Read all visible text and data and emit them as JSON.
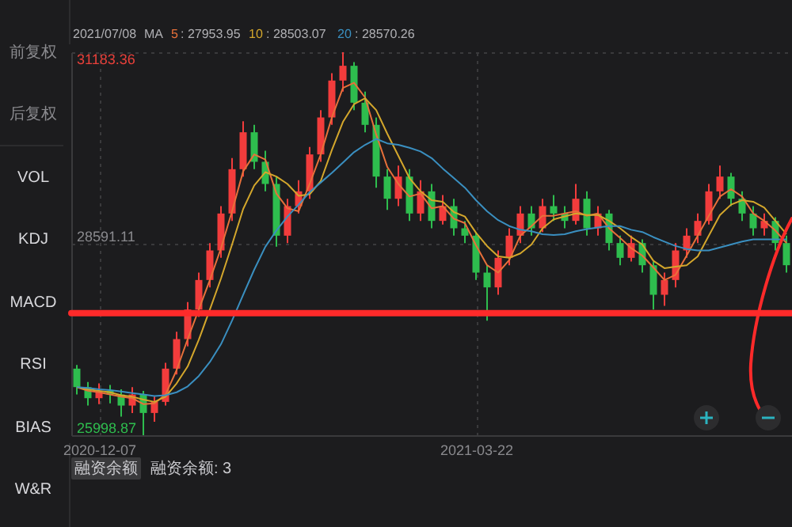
{
  "chart_data": {
    "type": "candlestick",
    "categories": [
      null,
      null,
      "2020-12-07",
      null,
      null,
      null,
      null,
      null,
      null,
      null,
      null,
      null,
      null,
      null,
      null,
      null,
      null,
      null,
      null,
      null,
      null,
      null,
      null,
      null,
      null,
      null,
      null,
      null,
      null,
      null,
      null,
      null,
      null,
      null,
      null,
      null,
      "2021-03-22",
      null,
      null,
      null,
      null,
      null,
      null,
      null,
      null,
      null,
      null,
      null,
      null,
      null,
      null,
      null,
      null,
      null,
      null,
      null,
      null,
      null,
      null,
      null,
      null,
      null,
      null,
      null,
      null
    ],
    "ohlc": [
      [
        26900,
        26950,
        26550,
        26650
      ],
      [
        26650,
        26720,
        26400,
        26500
      ],
      [
        26500,
        26700,
        26420,
        26600
      ],
      [
        26600,
        26680,
        26430,
        26550
      ],
      [
        26550,
        26620,
        26250,
        26400
      ],
      [
        26400,
        26650,
        26300,
        26550
      ],
      [
        26550,
        26600,
        25998.87,
        26300
      ],
      [
        26300,
        26520,
        26180,
        26450
      ],
      [
        26450,
        26980,
        26400,
        26900
      ],
      [
        26900,
        27400,
        26820,
        27300
      ],
      [
        27300,
        27800,
        27200,
        27700
      ],
      [
        27700,
        28200,
        27600,
        28100
      ],
      [
        28100,
        28600,
        28000,
        28500
      ],
      [
        28500,
        29100,
        28400,
        29000
      ],
      [
        29000,
        29750,
        28900,
        29600
      ],
      [
        29600,
        30250,
        29500,
        30100
      ],
      [
        30100,
        30200,
        29600,
        29700
      ],
      [
        29700,
        29850,
        29300,
        29400
      ],
      [
        29400,
        29500,
        28550,
        28700
      ],
      [
        28700,
        29200,
        28600,
        29100
      ],
      [
        29100,
        29450,
        29000,
        29300
      ],
      [
        29300,
        29900,
        29200,
        29800
      ],
      [
        29800,
        30400,
        29700,
        30300
      ],
      [
        30300,
        30900,
        30200,
        30800
      ],
      [
        30800,
        31183.36,
        30650,
        31000
      ],
      [
        31000,
        31050,
        30400,
        30500
      ],
      [
        30500,
        30650,
        30100,
        30200
      ],
      [
        30200,
        30300,
        29350,
        29500
      ],
      [
        29500,
        29600,
        29050,
        29200
      ],
      [
        29200,
        29650,
        29100,
        29500
      ],
      [
        29500,
        29600,
        28900,
        29000
      ],
      [
        29000,
        29450,
        28900,
        29300
      ],
      [
        29300,
        29400,
        28800,
        28900
      ],
      [
        28900,
        29250,
        28850,
        29100
      ],
      [
        29100,
        29200,
        28700,
        28800
      ],
      [
        28800,
        28900,
        28600,
        28700
      ],
      [
        28700,
        28750,
        28100,
        28200
      ],
      [
        28200,
        28300,
        27550,
        28000
      ],
      [
        28000,
        28500,
        27900,
        28400
      ],
      [
        28400,
        28800,
        28300,
        28700
      ],
      [
        28700,
        29100,
        28600,
        29000
      ],
      [
        29000,
        29100,
        28700,
        28800
      ],
      [
        28800,
        29200,
        28750,
        29100
      ],
      [
        29100,
        29250,
        28900,
        29000
      ],
      [
        29000,
        29100,
        28800,
        28900
      ],
      [
        28900,
        29400,
        28850,
        29200
      ],
      [
        29200,
        29300,
        28700,
        28800
      ],
      [
        28800,
        29100,
        28700,
        29000
      ],
      [
        29000,
        29050,
        28500,
        28600
      ],
      [
        28600,
        28700,
        28300,
        28400
      ],
      [
        28400,
        28700,
        28350,
        28600
      ],
      [
        28600,
        28650,
        28200,
        28300
      ],
      [
        28300,
        28350,
        27700,
        27900
      ],
      [
        27900,
        28200,
        27750,
        28100
      ],
      [
        28100,
        28600,
        28000,
        28500
      ],
      [
        28500,
        28800,
        28400,
        28700
      ],
      [
        28700,
        29000,
        28600,
        28900
      ],
      [
        28900,
        29400,
        28850,
        29300
      ],
      [
        29300,
        29650,
        29200,
        29500
      ],
      [
        29500,
        29550,
        29100,
        29200
      ],
      [
        29200,
        29300,
        28900,
        29000
      ],
      [
        29000,
        29100,
        28700,
        28800
      ],
      [
        28800,
        29000,
        28700,
        28900
      ],
      [
        28900,
        28950,
        28500,
        28600
      ],
      [
        28600,
        28700,
        28200,
        28300
      ]
    ],
    "colors": [
      "#2ebd4e",
      "#2ebd4e",
      "#f23c3c",
      "#2ebd4e",
      "#2ebd4e",
      "#f23c3c",
      "#2ebd4e",
      "#f23c3c",
      "#f23c3c",
      "#f23c3c",
      "#f23c3c",
      "#f23c3c",
      "#f23c3c",
      "#f23c3c",
      "#f23c3c",
      "#f23c3c",
      "#2ebd4e",
      "#2ebd4e",
      "#2ebd4e",
      "#f23c3c",
      "#f23c3c",
      "#f23c3c",
      "#f23c3c",
      "#f23c3c",
      "#f23c3c",
      "#2ebd4e",
      "#2ebd4e",
      "#2ebd4e",
      "#2ebd4e",
      "#f23c3c",
      "#2ebd4e",
      "#f23c3c",
      "#2ebd4e",
      "#f23c3c",
      "#2ebd4e",
      "#2ebd4e",
      "#2ebd4e",
      "#2ebd4e",
      "#f23c3c",
      "#f23c3c",
      "#f23c3c",
      "#2ebd4e",
      "#f23c3c",
      "#2ebd4e",
      "#2ebd4e",
      "#f23c3c",
      "#2ebd4e",
      "#f23c3c",
      "#2ebd4e",
      "#2ebd4e",
      "#f23c3c",
      "#2ebd4e",
      "#2ebd4e",
      "#f23c3c",
      "#f23c3c",
      "#f23c3c",
      "#f23c3c",
      "#f23c3c",
      "#f23c3c",
      "#2ebd4e",
      "#2ebd4e",
      "#2ebd4e",
      "#f23c3c",
      "#2ebd4e",
      "#2ebd4e"
    ],
    "series": [
      {
        "type": "line",
        "name": "5",
        "color": "#e8703a",
        "values": [
          26650,
          26600,
          26580,
          26550,
          26520,
          26500,
          26420,
          26430,
          26550,
          26880,
          27300,
          27700,
          28100,
          28530,
          29030,
          29570,
          29800,
          29730,
          29270,
          29070,
          29030,
          29400,
          29800,
          30300,
          30700,
          30770,
          30570,
          30070,
          29630,
          29400,
          29230,
          29270,
          29070,
          29100,
          28930,
          28870,
          28570,
          28300,
          28200,
          28370,
          28700,
          28830,
          28970,
          28970,
          29000,
          29030,
          28970,
          29000,
          28800,
          28670,
          28530,
          28430,
          28270,
          28100,
          28170,
          28430,
          28700,
          28970,
          29230,
          29330,
          29230,
          29000,
          28900,
          28770,
          28600
        ]
      },
      {
        "type": "line",
        "name": "10",
        "color": "#d4a72c",
        "values": [
          26650,
          26620,
          26600,
          26580,
          26540,
          26520,
          26480,
          26450,
          26520,
          26700,
          26930,
          27290,
          27700,
          28120,
          28580,
          29060,
          29380,
          29560,
          29500,
          29400,
          29240,
          29260,
          29440,
          29860,
          30240,
          30480,
          30560,
          30400,
          30080,
          29780,
          29480,
          29300,
          29180,
          29160,
          29020,
          28960,
          28740,
          28560,
          28420,
          28400,
          28460,
          28580,
          28800,
          28920,
          28960,
          29000,
          28980,
          28980,
          28900,
          28800,
          28680,
          28580,
          28360,
          28260,
          28280,
          28300,
          28420,
          28700,
          28980,
          29120,
          29180,
          29160,
          29080,
          28900,
          28720
        ]
      },
      {
        "type": "line",
        "name": "20",
        "color": "#3a8fc0",
        "values": [
          26650,
          26640,
          26620,
          26610,
          26590,
          26570,
          26550,
          26530,
          26540,
          26580,
          26660,
          26800,
          26990,
          27230,
          27550,
          27900,
          28240,
          28550,
          28770,
          28960,
          29120,
          29290,
          29420,
          29550,
          29690,
          29830,
          29930,
          30010,
          29950,
          29930,
          29890,
          29840,
          29750,
          29610,
          29480,
          29350,
          29180,
          29030,
          28910,
          28830,
          28780,
          28760,
          28720,
          28710,
          28720,
          28760,
          28790,
          28810,
          28830,
          28830,
          28780,
          28750,
          28680,
          28620,
          28560,
          28520,
          28500,
          28500,
          28540,
          28580,
          28620,
          28650,
          28650,
          28650,
          28650
        ]
      }
    ],
    "ylim": [
      25998.87,
      31183.36
    ],
    "yticks": [
      25998.87,
      28591.11,
      31183.36
    ],
    "grid": true,
    "legend": "top left",
    "ref_lines": [
      {
        "axis": "y",
        "value": 27650,
        "color": "#ff2a2a"
      }
    ],
    "annotations": [
      "2021/07/08",
      "MA",
      ": 27953.95",
      ": 28503.07",
      ": 28570.26",
      "前复权",
      "后复权",
      "VOL",
      "KDJ",
      "MACD",
      "RSI",
      "BIAS",
      "W&R",
      "融资余额",
      "融资余额: 3"
    ]
  }
}
